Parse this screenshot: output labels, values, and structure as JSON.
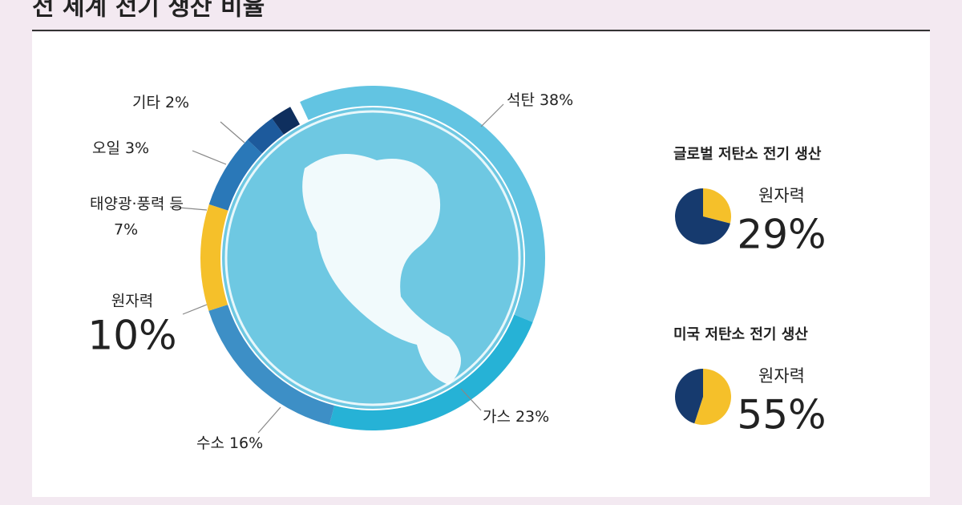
{
  "chart_data": [
    {
      "type": "donut",
      "title": "전 세계 전기 생산 비율",
      "categories": [
        "석탄",
        "가스",
        "수소",
        "원자력",
        "태양광·풍력 등",
        "오일",
        "기타"
      ],
      "values": [
        38,
        23,
        16,
        10,
        7,
        3,
        2
      ],
      "value_labels": [
        "38%",
        "23%",
        "16%",
        "10%",
        "7%",
        "3%",
        "2%"
      ],
      "colors": [
        "#62c4e2",
        "#26b2d6",
        "#3d8fc6",
        "#f5c02a",
        "#2a78b8",
        "#1d5a9c",
        "#0f2f5e"
      ]
    },
    {
      "type": "pie",
      "title": "글로벌 저탄소 전기 생산",
      "categories": [
        "원자력",
        null
      ],
      "values": [
        29,
        71
      ],
      "value_labels": [
        "29%",
        null
      ],
      "colors": [
        "#f5c02a",
        "#163a6e"
      ]
    },
    {
      "type": "pie",
      "title": "미국 저탄소 전기 생산",
      "categories": [
        "원자력",
        null
      ],
      "values": [
        55,
        45
      ],
      "value_labels": [
        "55%",
        null
      ],
      "colors": [
        "#f5c02a",
        "#163a6e"
      ]
    }
  ]
}
